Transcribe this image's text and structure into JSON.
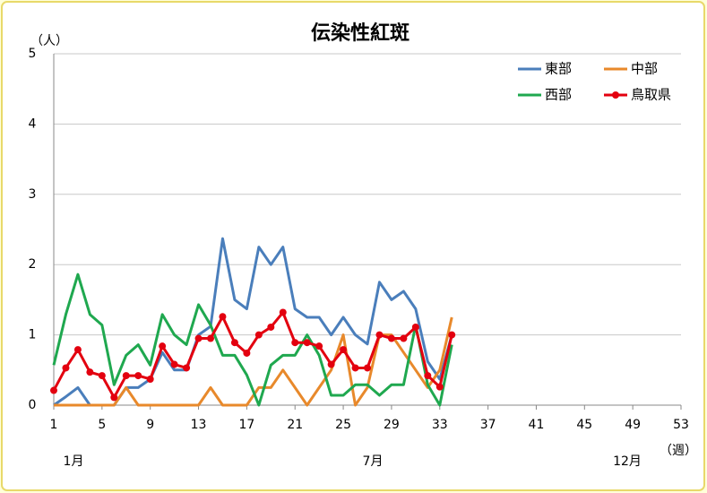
{
  "chart_data": {
    "type": "line",
    "title": "伝染性紅斑",
    "y_unit": "（人）",
    "x_unit": "（週）",
    "month_labels": [
      "1月",
      "7月",
      "12月"
    ],
    "x": [
      1,
      2,
      3,
      4,
      5,
      6,
      7,
      8,
      9,
      10,
      11,
      12,
      13,
      14,
      15,
      16,
      17,
      18,
      19,
      20,
      21,
      22,
      23,
      24,
      25,
      26,
      27,
      28,
      29,
      30,
      31,
      32,
      33,
      34
    ],
    "xlim": [
      1,
      53
    ],
    "xticks": [
      1,
      5,
      9,
      13,
      17,
      21,
      25,
      29,
      33,
      37,
      41,
      45,
      49,
      53
    ],
    "ylim": [
      0,
      5
    ],
    "yticks": [
      0,
      1,
      2,
      3,
      4,
      5
    ],
    "grid": true,
    "legend": "top-right",
    "series": [
      {
        "name": "東部",
        "color": "#4a7ebb",
        "marker": false,
        "values": [
          0,
          0.12,
          0.25,
          0,
          0,
          0,
          0.25,
          0.25,
          0.37,
          0.75,
          0.5,
          0.5,
          1.0,
          1.12,
          2.37,
          1.5,
          1.37,
          2.25,
          2.0,
          2.25,
          1.37,
          1.25,
          1.25,
          1.0,
          1.25,
          1.0,
          0.87,
          1.75,
          1.5,
          1.62,
          1.37,
          0.62,
          0.37,
          1.0
        ]
      },
      {
        "name": "中部",
        "color": "#e8892b",
        "marker": false,
        "values": [
          0,
          0,
          0,
          0,
          0,
          0,
          0.25,
          0,
          0,
          0,
          0,
          0,
          0,
          0.25,
          0,
          0,
          0,
          0.25,
          0.25,
          0.5,
          0.25,
          0,
          0.25,
          0.5,
          1.0,
          0,
          0.25,
          1.0,
          1.0,
          0.75,
          0.5,
          0.25,
          0.5,
          1.25
        ]
      },
      {
        "name": "西部",
        "color": "#1fa84f",
        "marker": false,
        "values": [
          0.57,
          1.29,
          1.86,
          1.29,
          1.14,
          0.29,
          0.71,
          0.86,
          0.57,
          1.29,
          1.0,
          0.86,
          1.43,
          1.14,
          0.71,
          0.71,
          0.43,
          0,
          0.57,
          0.71,
          0.71,
          1.0,
          0.71,
          0.14,
          0.14,
          0.29,
          0.29,
          0.14,
          0.29,
          0.29,
          1.14,
          0.29,
          0,
          0.86
        ]
      },
      {
        "name": "鳥取県",
        "color": "#e3000f",
        "marker": true,
        "values": [
          0.21,
          0.53,
          0.79,
          0.47,
          0.42,
          0.11,
          0.42,
          0.42,
          0.37,
          0.84,
          0.58,
          0.53,
          0.95,
          0.95,
          1.26,
          0.89,
          0.74,
          1.0,
          1.11,
          1.32,
          0.89,
          0.89,
          0.84,
          0.58,
          0.79,
          0.53,
          0.53,
          1.0,
          0.95,
          0.95,
          1.11,
          0.42,
          0.26,
          1.0
        ]
      }
    ]
  }
}
